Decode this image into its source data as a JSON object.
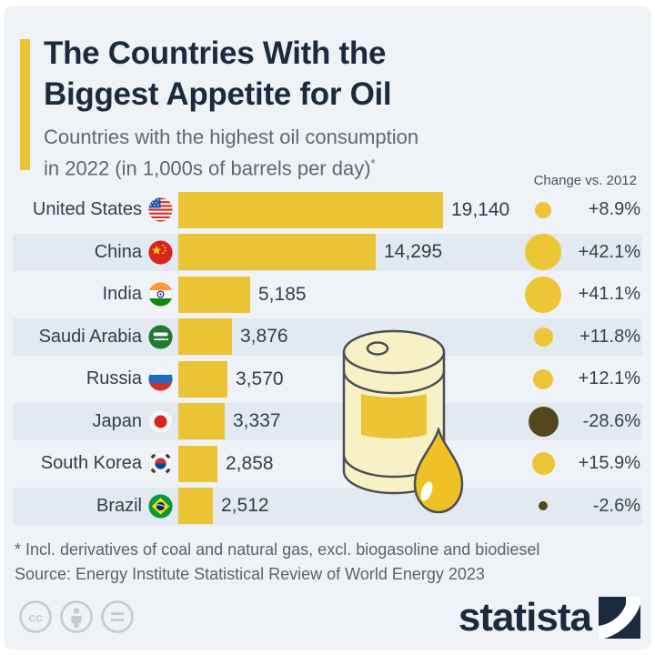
{
  "header": {
    "title_line1": "The Countries With the",
    "title_line2": "Biggest Appetite for Oil",
    "subtitle_line1": "Countries with the highest oil consumption",
    "subtitle_line2": "in 2022 (in 1,000s of barrels per day)",
    "footnote_marker": "*",
    "change_column_header": "Change vs. 2012"
  },
  "chart_data": {
    "type": "bar",
    "title": "The Countries With the Biggest Appetite for Oil",
    "subtitle": "Countries with the highest oil consumption in 2022 (in 1,000s of barrels per day)*",
    "unit": "1,000s of barrels per day",
    "year": "2022",
    "comparison_year": "2012",
    "xlim": [
      0,
      19140
    ],
    "legend_position": "right",
    "grid": false,
    "rows": [
      {
        "country": "United States",
        "flag": "us",
        "value": 19140,
        "value_label": "19,140",
        "change_pct": 8.9,
        "change_label": "+8.9%"
      },
      {
        "country": "China",
        "flag": "cn",
        "value": 14295,
        "value_label": "14,295",
        "change_pct": 42.1,
        "change_label": "+42.1%"
      },
      {
        "country": "India",
        "flag": "in",
        "value": 5185,
        "value_label": "5,185",
        "change_pct": 41.1,
        "change_label": "+41.1%"
      },
      {
        "country": "Saudi Arabia",
        "flag": "sa",
        "value": 3876,
        "value_label": "3,876",
        "change_pct": 11.8,
        "change_label": "+11.8%"
      },
      {
        "country": "Russia",
        "flag": "ru",
        "value": 3570,
        "value_label": "3,570",
        "change_pct": 12.1,
        "change_label": "+12.1%"
      },
      {
        "country": "Japan",
        "flag": "jp",
        "value": 3337,
        "value_label": "3,337",
        "change_pct": -28.6,
        "change_label": "-28.6%"
      },
      {
        "country": "South Korea",
        "flag": "kr",
        "value": 2858,
        "value_label": "2,858",
        "change_pct": 15.9,
        "change_label": "+15.9%"
      },
      {
        "country": "Brazil",
        "flag": "br",
        "value": 2512,
        "value_label": "2,512",
        "change_pct": -2.6,
        "change_label": "-2.6%"
      }
    ]
  },
  "footer": {
    "footnote": "* Incl. derivatives of coal and natural gas, excl. biogasoline and biodiesel",
    "source": "Source: Energy Institute Statistical Review of World Energy 2023",
    "brand": "statista",
    "license_icons": [
      "cc",
      "by",
      "nd"
    ]
  },
  "colors": {
    "bar_yellow": "#EAC435",
    "bubble_positive": "#EDC637",
    "bubble_negative": "#54471B",
    "title_navy": "#1B2A3E",
    "row_band": "#E3E9F0",
    "background": "#EFF3F7"
  }
}
